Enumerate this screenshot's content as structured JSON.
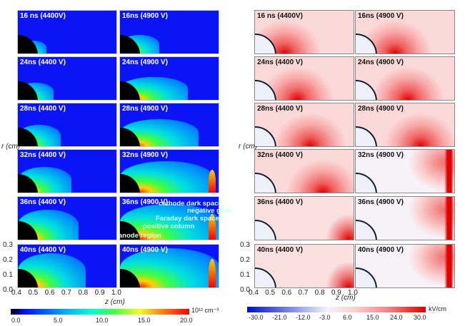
{
  "left": {
    "panels": [
      {
        "label": "16 ns (4400V)"
      },
      {
        "label": "16ns (4900 V)"
      },
      {
        "label": "24ns (4400 V)"
      },
      {
        "label": "24ns (4900 V)"
      },
      {
        "label": "28ns (4400 V)"
      },
      {
        "label": "28ns (4900 V)"
      },
      {
        "label": "32ns (4400 V)"
      },
      {
        "label": "32ns (4900 V)"
      },
      {
        "label": "36ns (4400 V)"
      },
      {
        "label": "36ns (4900 V)"
      },
      {
        "label": "40ns (4400 V)"
      },
      {
        "label": "40ns (4900 V)"
      }
    ],
    "annotations": [
      "cathode dark space",
      "negative glow",
      "Faraday dark space",
      "positive column",
      "anode region"
    ],
    "yticks": [
      "0.3",
      "0.2",
      "0.1",
      "0.0"
    ],
    "xticks": [
      "0.4",
      "0.5",
      "0.6",
      "0.7",
      "0.8",
      "0.9",
      "1.0"
    ],
    "ylabel": "r (cm)",
    "xlabel": "z (cm)",
    "colorbar": {
      "ticks": [
        "0.0",
        "5.0",
        "10.0",
        "15.0",
        "20.0"
      ],
      "unit": "10¹² cm⁻³"
    }
  },
  "right": {
    "panels": [
      {
        "label": "16 ns (4400V)"
      },
      {
        "label": "16ns (4900 V)"
      },
      {
        "label": "24ns (4400 V)"
      },
      {
        "label": "24ns (4900 V)"
      },
      {
        "label": "28ns (4400 V)"
      },
      {
        "label": "28ns (4900 V)"
      },
      {
        "label": "32ns (4400 V)"
      },
      {
        "label": "32ns (4900 V)"
      },
      {
        "label": "36ns (4400 V)"
      },
      {
        "label": "36ns (4900 V)"
      },
      {
        "label": "40ns (4400 V)"
      },
      {
        "label": "40ns (4900 V)"
      }
    ],
    "yticks": [
      "0.3",
      "0.2",
      "0.1",
      "0.0"
    ],
    "xticks": [
      "0.4",
      "0.5",
      "0.6",
      "0.7",
      "0.8",
      "0.9",
      "1.0"
    ],
    "ylabel": "r (cm)",
    "xlabel": "z (cm)",
    "colorbar": {
      "ticks": [
        "-30.0",
        "-21.0",
        "-12.0",
        "-3.0",
        "6.0",
        "15.0",
        "24.0",
        "30.0"
      ],
      "unit": "kV/cm"
    }
  },
  "colors": {
    "density_bg": "#0a14f5",
    "field_positive": "#e00000",
    "field_negative": "#0010c0"
  }
}
